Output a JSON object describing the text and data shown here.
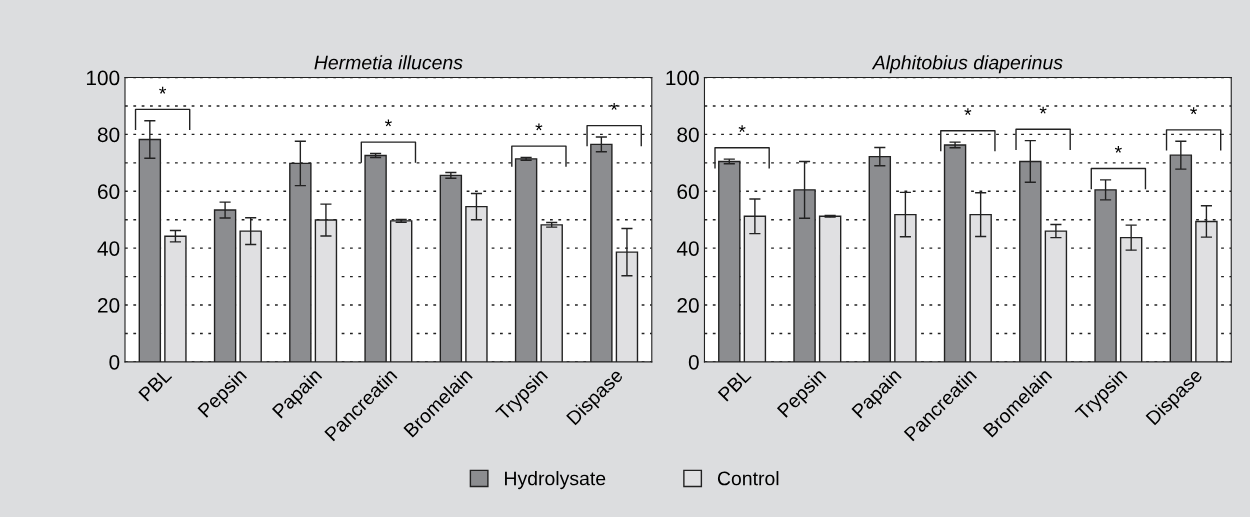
{
  "chart_data": [
    {
      "type": "bar",
      "title": "Hermetia illucens",
      "categories": [
        "PBL",
        "Pepsin",
        "Papain",
        "Pancreatin",
        "Bromelain",
        "Trypsin",
        "Dispase"
      ],
      "series": [
        {
          "color": "#8c8d90",
          "values": [
            78.2,
            53.4,
            69.8,
            72.6,
            65.6,
            71.4,
            76.5
          ],
          "errors": [
            6.6,
            2.8,
            7.8,
            0.7,
            1,
            0.5,
            2.6
          ]
        },
        {
          "color": "#e0e0e2",
          "values": [
            44.2,
            46,
            49.9,
            49.6,
            54.6,
            48.2,
            38.6
          ],
          "errors": [
            2,
            4.7,
            5.6,
            0.5,
            4.6,
            0.8,
            8.3
          ]
        }
      ],
      "ylim": [
        0,
        100
      ],
      "yticks": [
        0,
        {
          "value": 10,
          "label": null
        },
        20,
        {
          "value": 30,
          "label": null
        },
        40,
        {
          "value": 50,
          "label": null
        },
        60,
        {
          "value": 70,
          "label": null
        },
        80,
        {
          "value": 90,
          "label": null
        },
        100
      ],
      "grid": "y",
      "annotations": [
        "*",
        "*",
        "*",
        "*"
      ]
    },
    {
      "type": "bar",
      "title": "Alphitobius diaperinus",
      "categories": [
        "PBL",
        "Pepsin",
        "Papain",
        "Pancreatin",
        "Bromelain",
        "Trypsin",
        "Dispase"
      ],
      "series": [
        {
          "name": "Hydrolysate",
          "color": "#8c8d90",
          "values": [
            70.5,
            60.5,
            72.2,
            76.3,
            70.5,
            60.5,
            72.7
          ],
          "errors": [
            0.8,
            10,
            3.2,
            1,
            7.3,
            3.5,
            4.9
          ]
        },
        {
          "name": "Control",
          "color": "#e0e0e2",
          "values": [
            51.2,
            51.2,
            51.8,
            51.8,
            46,
            43.7,
            49.4
          ],
          "errors": [
            6.1,
            0.3,
            7.8,
            7.7,
            2.3,
            4.4,
            5.5
          ]
        }
      ],
      "ylim": [
        0,
        100
      ],
      "yticks": [
        0,
        {
          "value": 10,
          "label": null
        },
        20,
        {
          "value": 30,
          "label": null
        },
        40,
        {
          "value": 50,
          "label": null
        },
        60,
        {
          "value": 70,
          "label": null
        },
        80,
        {
          "value": 90,
          "label": null
        },
        100
      ],
      "grid": "y",
      "legend": "bottom",
      "annotations": [
        "*",
        "*",
        "*",
        "*",
        "*"
      ]
    }
  ]
}
